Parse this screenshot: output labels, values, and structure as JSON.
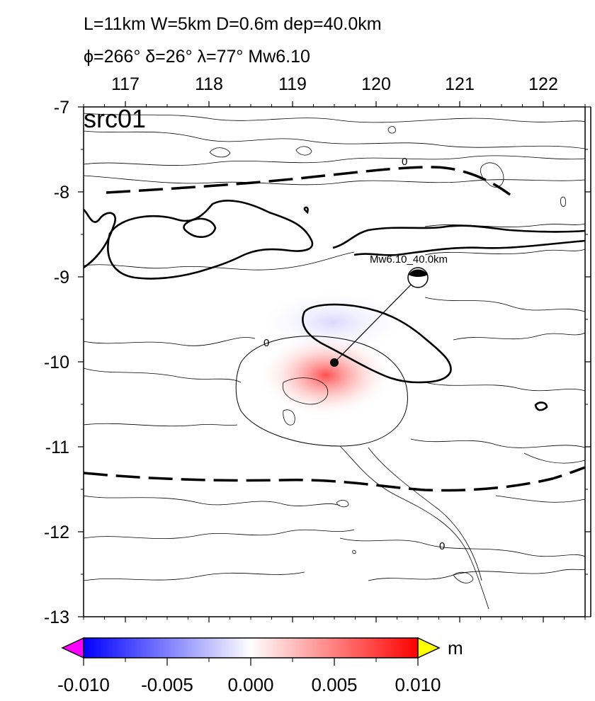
{
  "header": {
    "line1": "L=11km W=5km D=0.6m dep=40.0km",
    "line2": "ϕ=266° δ=26° λ=77° Mw6.10"
  },
  "map": {
    "panel_label": "src01",
    "x_ticks": [
      "117",
      "118",
      "119",
      "120",
      "121",
      "122"
    ],
    "y_ticks": [
      "-7",
      "-8",
      "-9",
      "-10",
      "-11",
      "-12",
      "-13"
    ],
    "lon_range": [
      116.5,
      122.5
    ],
    "lat_range": [
      -13,
      -7
    ],
    "epicenter": {
      "lon": 119.4,
      "lat": -10.0
    },
    "beachball": {
      "lon": 120.4,
      "lat": -9.0,
      "label": "Mw6.10_40.0km"
    },
    "contour_zero_labels": [
      "0",
      "0",
      "0"
    ],
    "colors": {
      "uplift": "#ff0000",
      "subsidence": "#0000ff",
      "neutral": "#ffffff"
    }
  },
  "colorbar": {
    "unit": "m",
    "ticks": [
      "-0.010",
      "-0.005",
      "0.000",
      "0.005",
      "0.010"
    ],
    "range": [
      -0.01,
      0.01
    ],
    "low_color": "#ff00ff",
    "high_color": "#ffff00"
  }
}
